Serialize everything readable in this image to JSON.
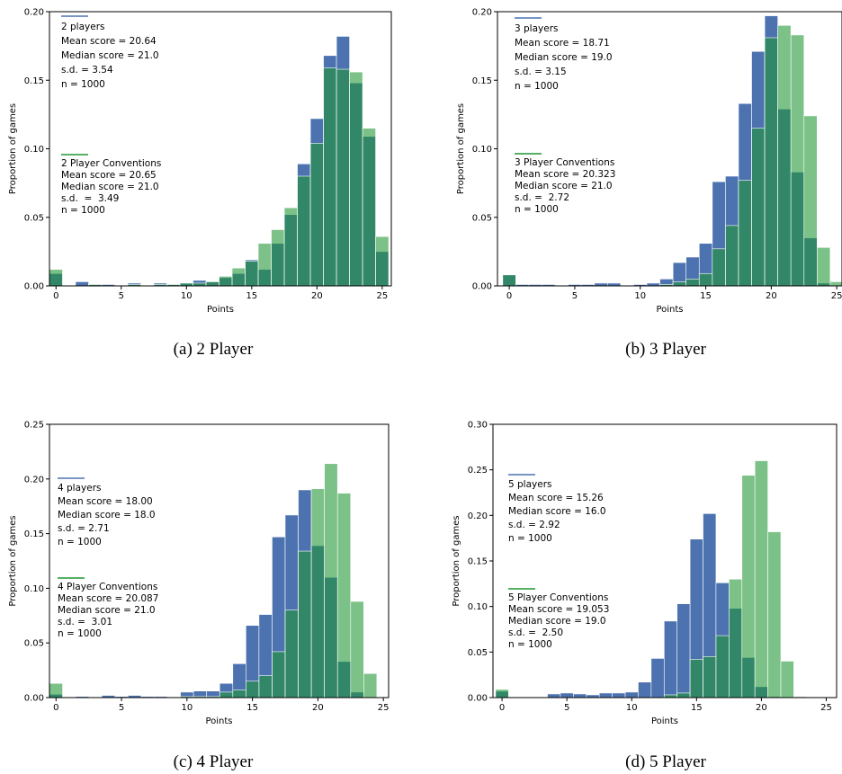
{
  "chart_data": [
    {
      "type": "histogram",
      "caption": "(a) 2 Player",
      "xlabel": "Points",
      "ylabel": "Proportion of games",
      "bins": [
        -0.5,
        0.5,
        1.5,
        2.5,
        3.5,
        4.5,
        5.5,
        6.5,
        7.5,
        8.5,
        9.5,
        10.5,
        11.5,
        12.5,
        13.5,
        14.5,
        15.5,
        16.5,
        17.5,
        18.5,
        19.5,
        20.5,
        21.5,
        22.5,
        23.5,
        24.5,
        25.5
      ],
      "xlim": [
        -0.5,
        25.7
      ],
      "xticks": [
        0,
        5,
        10,
        15,
        20,
        25
      ],
      "ylim": [
        0,
        0.2
      ],
      "yticks": [
        {
          "value": 0,
          "label": "0.00"
        },
        {
          "value": 0.05,
          "label": "0.05"
        },
        {
          "value": 0.1,
          "label": "0.10"
        },
        {
          "value": 0.15,
          "label": "0.15"
        },
        {
          "value": 0.2,
          "label": "0.20"
        }
      ],
      "series": [
        {
          "name": "2 players\nMean score = 20.64\nMedian score = 21.0\ns.d. = 3.54\nn = 1000",
          "color": "#4c72b0",
          "values": [
            0.009,
            0,
            0.003,
            0.001,
            0.001,
            0,
            0.002,
            0,
            0.002,
            0.001,
            0.002,
            0.004,
            0.003,
            0.006,
            0.009,
            0.019,
            0.012,
            0.031,
            0.052,
            0.089,
            0.122,
            0.168,
            0.182,
            0.148,
            0.109,
            0.025
          ]
        },
        {
          "name": "2 Player Conventions\nMean score = 20.65\nMedian score = 21.0\ns.d.  =  3.49\nn = 1000",
          "color": "#1e9632",
          "values": [
            0.012,
            0,
            0,
            0.001,
            0,
            0,
            0.001,
            0,
            0.001,
            0.001,
            0.002,
            0.002,
            0.003,
            0.007,
            0.013,
            0.018,
            0.031,
            0.041,
            0.057,
            0.08,
            0.104,
            0.159,
            0.158,
            0.156,
            0.115,
            0.036
          ]
        }
      ]
    },
    {
      "type": "histogram",
      "caption": "(b) 3 Player",
      "xlabel": "Points",
      "ylabel": "Proportion of games",
      "bins": [
        -0.5,
        0.5,
        1.5,
        2.5,
        3.5,
        4.5,
        5.5,
        6.5,
        7.5,
        8.5,
        9.5,
        10.5,
        11.5,
        12.5,
        13.5,
        14.5,
        15.5,
        16.5,
        17.5,
        18.5,
        19.5,
        20.5,
        21.5,
        22.5,
        23.5,
        24.5,
        25.5
      ],
      "xlim": [
        -0.9,
        25.4
      ],
      "xticks": [
        0,
        5,
        10,
        15,
        20,
        25
      ],
      "ylim": [
        0,
        0.2
      ],
      "yticks": [
        {
          "value": 0,
          "label": "0.00"
        },
        {
          "value": 0.05,
          "label": "0.05"
        },
        {
          "value": 0.1,
          "label": "0.10"
        },
        {
          "value": 0.15,
          "label": "0.15"
        },
        {
          "value": 0.2,
          "label": "0.20"
        }
      ],
      "series": [
        {
          "name": "3 players\nMean score = 18.71\nMedian score = 19.0\ns.d. = 3.15\nn = 1000",
          "color": "#4c72b0",
          "values": [
            0.008,
            0.001,
            0.001,
            0.001,
            0,
            0.001,
            0.001,
            0.002,
            0.002,
            0,
            0.001,
            0.002,
            0.005,
            0.017,
            0.021,
            0.031,
            0.076,
            0.08,
            0.133,
            0.171,
            0.197,
            0.129,
            0.083,
            0.035,
            0.002,
            0
          ]
        },
        {
          "name": "3 Player Conventions\nMean score = 20.323\nMedian score = 21.0\ns.d. =  2.72\nn = 1000",
          "color": "#1e9632",
          "values": [
            0.008,
            0,
            0,
            0,
            0,
            0,
            0,
            0,
            0,
            0,
            0,
            0,
            0.001,
            0.003,
            0.005,
            0.009,
            0.027,
            0.044,
            0.077,
            0.115,
            0.181,
            0.19,
            0.183,
            0.124,
            0.028,
            0.003
          ]
        }
      ]
    },
    {
      "type": "histogram",
      "caption": "(c) 4 Player",
      "xlabel": "Points",
      "ylabel": "Proportion of games",
      "bins": [
        -0.5,
        0.5,
        1.5,
        2.5,
        3.5,
        4.5,
        5.5,
        6.5,
        7.5,
        8.5,
        9.5,
        10.5,
        11.5,
        12.5,
        13.5,
        14.5,
        15.5,
        16.5,
        17.5,
        18.5,
        19.5,
        20.5,
        21.5,
        22.5,
        23.5,
        24.5,
        25.5
      ],
      "xlim": [
        -0.5,
        25.4
      ],
      "xticks": [
        0,
        5,
        10,
        15,
        20,
        25
      ],
      "ylim": [
        0,
        0.25
      ],
      "yticks": [
        {
          "value": 0,
          "label": "0.00"
        },
        {
          "value": 0.05,
          "label": "0.05"
        },
        {
          "value": 0.1,
          "label": "0.10"
        },
        {
          "value": 0.15,
          "label": "0.15"
        },
        {
          "value": 0.2,
          "label": "0.20"
        },
        {
          "value": 0.25,
          "label": "0.25"
        }
      ],
      "series": [
        {
          "name": "4 players\nMean score = 18.00\nMedian score = 18.0\ns.d. = 2.71\nn = 1000",
          "color": "#4c72b0",
          "values": [
            0.003,
            0,
            0.001,
            0,
            0.002,
            0.001,
            0.002,
            0.001,
            0.001,
            0,
            0.005,
            0.006,
            0.006,
            0.013,
            0.031,
            0.066,
            0.076,
            0.147,
            0.167,
            0.19,
            0.139,
            0.11,
            0.033,
            0.005,
            0,
            0
          ]
        },
        {
          "name": "4 Player Conventions\nMean score = 20.087\nMedian score = 21.0\ns.d. =  3.01\nn = 1000",
          "color": "#1e9632",
          "values": [
            0.013,
            0,
            0,
            0,
            0,
            0,
            0,
            0,
            0,
            0,
            0.001,
            0.001,
            0.001,
            0.005,
            0.007,
            0.015,
            0.02,
            0.042,
            0.08,
            0.134,
            0.191,
            0.214,
            0.187,
            0.088,
            0.022,
            0
          ]
        }
      ]
    },
    {
      "type": "histogram",
      "caption": "(d) 5 Player",
      "xlabel": "Points",
      "ylabel": "Proportion of games",
      "bins": [
        -0.5,
        0.5,
        1.5,
        2.5,
        3.5,
        4.5,
        5.5,
        6.5,
        7.5,
        8.5,
        9.5,
        10.5,
        11.5,
        12.5,
        13.5,
        14.5,
        15.5,
        16.5,
        17.5,
        18.5,
        19.5,
        20.5,
        21.5,
        22.5,
        23.5,
        24.5,
        25.5
      ],
      "xlim": [
        -0.7,
        25.8
      ],
      "xticks": [
        0,
        5,
        10,
        15,
        20,
        25
      ],
      "ylim": [
        0,
        0.3
      ],
      "yticks": [
        {
          "value": 0,
          "label": "0.00"
        },
        {
          "value": 0.05,
          "label": "0.05"
        },
        {
          "value": 0.1,
          "label": "0.10"
        },
        {
          "value": 0.15,
          "label": "0.15"
        },
        {
          "value": 0.2,
          "label": "0.20"
        },
        {
          "value": 0.25,
          "label": "0.25"
        },
        {
          "value": 0.3,
          "label": "0.30"
        }
      ],
      "series": [
        {
          "name": "5 players\nMean score = 15.26\nMedian score = 16.0\ns.d. = 2.92\nn = 1000",
          "color": "#4c72b0",
          "values": [
            0.007,
            0,
            0,
            0,
            0.004,
            0.005,
            0.004,
            0.003,
            0.005,
            0.005,
            0.006,
            0.017,
            0.043,
            0.084,
            0.103,
            0.174,
            0.202,
            0.126,
            0.098,
            0.044,
            0.012,
            0.001,
            0,
            0,
            0,
            0
          ]
        },
        {
          "name": "5 Player Conventions\nMean score = 19.053\nMedian score = 19.0\ns.d. =  2.50\nn = 1000",
          "color": "#1e9632",
          "values": [
            0.009,
            0,
            0,
            0,
            0,
            0,
            0,
            0,
            0,
            0,
            0,
            0,
            0,
            0.003,
            0.005,
            0.042,
            0.045,
            0.068,
            0.13,
            0.244,
            0.26,
            0.182,
            0.04,
            0.001,
            0,
            0
          ]
        }
      ]
    }
  ]
}
